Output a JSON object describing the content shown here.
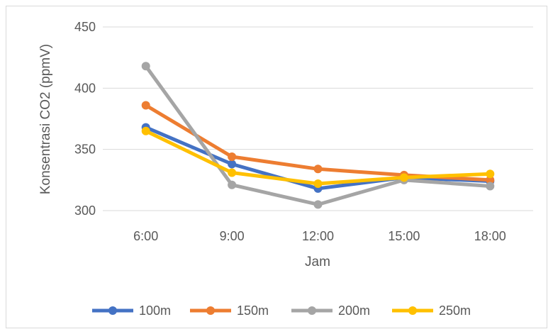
{
  "chart_data": {
    "type": "line",
    "title": "",
    "xlabel": "Jam",
    "ylabel": "Konsentrasi CO2 (ppmV)",
    "categories": [
      "6:00",
      "9:00",
      "12:00",
      "15:00",
      "18:00"
    ],
    "ylim": [
      300,
      450
    ],
    "yticks": [
      "300",
      "350",
      "400",
      "450"
    ],
    "grid": true,
    "legend": "bottom",
    "series": [
      {
        "name": "100m",
        "color": "#4472C4",
        "values": [
          368,
          338,
          318,
          327,
          324
        ]
      },
      {
        "name": "150m",
        "color": "#ED7D31",
        "values": [
          386,
          344,
          334,
          329,
          325
        ]
      },
      {
        "name": "200m",
        "color": "#A5A5A5",
        "values": [
          418,
          321,
          305,
          325,
          320
        ]
      },
      {
        "name": "250m",
        "color": "#FFC000",
        "values": [
          365,
          331,
          322,
          327,
          330
        ]
      }
    ]
  }
}
